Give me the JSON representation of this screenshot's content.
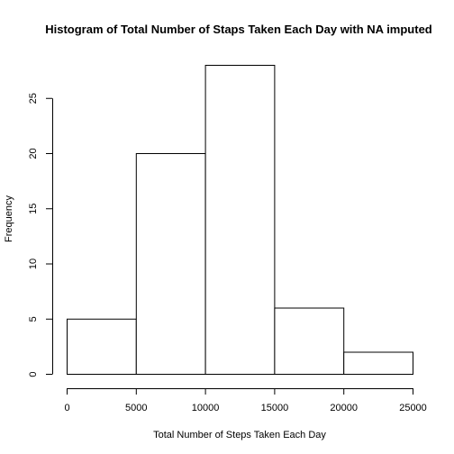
{
  "chart_data": {
    "type": "bar",
    "title": "Histogram of Total Number of Staps Taken Each Day with NA imputed",
    "xlabel": "Total Number of Steps Taken Each Day",
    "ylabel": "Frequency",
    "bins": [
      {
        "start": 0,
        "end": 5000,
        "value": 5
      },
      {
        "start": 5000,
        "end": 10000,
        "value": 20
      },
      {
        "start": 10000,
        "end": 15000,
        "value": 28
      },
      {
        "start": 15000,
        "end": 20000,
        "value": 6
      },
      {
        "start": 20000,
        "end": 25000,
        "value": 2
      }
    ],
    "xlim": [
      0,
      25000
    ],
    "ylim": [
      0,
      28
    ],
    "x_ticks": [
      0,
      5000,
      10000,
      15000,
      20000,
      25000
    ],
    "x_tick_labels": [
      "0",
      "5000",
      "10000",
      "15000",
      "20000",
      "25000"
    ],
    "y_ticks": [
      0,
      5,
      10,
      15,
      20,
      25
    ],
    "y_tick_labels": [
      "0",
      "5",
      "10",
      "15",
      "20",
      "25"
    ],
    "grid": false,
    "colors": {
      "bar_fill": "#ffffff",
      "bar_stroke": "#000000"
    }
  }
}
